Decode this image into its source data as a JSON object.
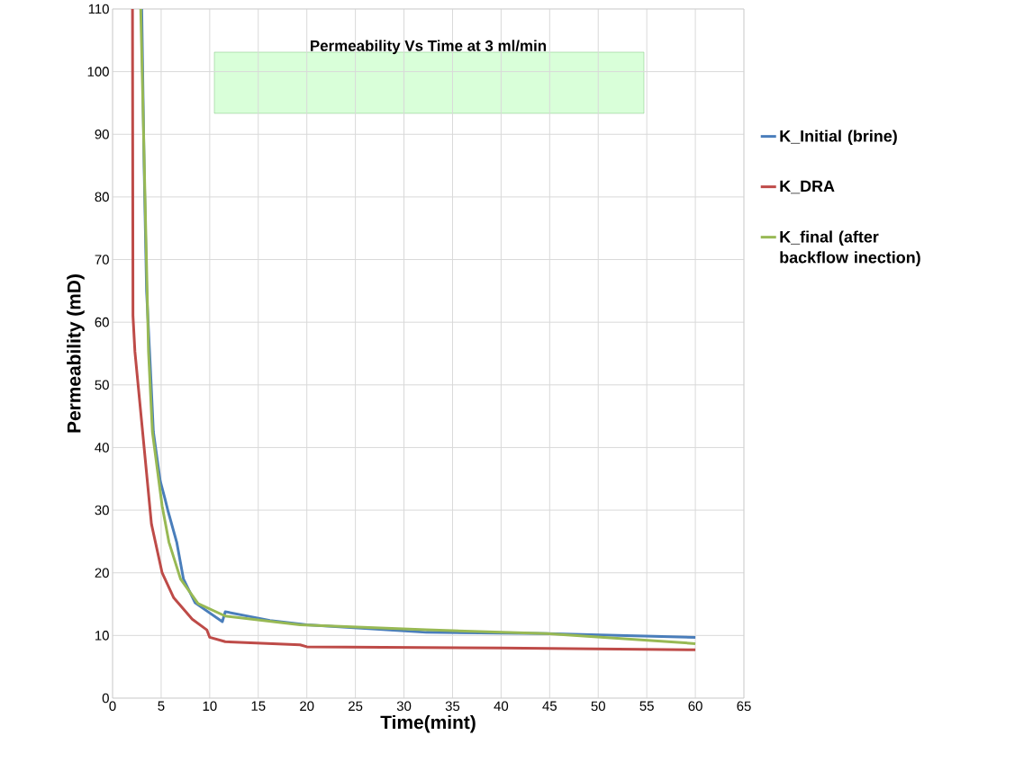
{
  "chart_data": {
    "type": "line",
    "title": "Permeability Vs Time at 3 ml/min",
    "xlabel": "Time(mint)",
    "ylabel": "Permeability (mD)",
    "xlim": [
      0,
      65
    ],
    "xticks": [
      0,
      5,
      10,
      15,
      20,
      25,
      30,
      35,
      40,
      45,
      50,
      55,
      60,
      65
    ],
    "ylim": [
      0,
      110
    ],
    "yticks": [
      0,
      10,
      20,
      30,
      40,
      50,
      60,
      70,
      80,
      90,
      100,
      110
    ],
    "grid": true,
    "legend": "right",
    "marker": "none",
    "line_style": "solid",
    "series": [
      {
        "name": "K_Initial (brine)",
        "color": "#4a7ebb",
        "x": [
          3.0,
          3.25,
          3.5,
          3.9,
          4.2,
          4.9,
          5.4,
          5.7,
          6.6,
          7.3,
          8.5,
          11.3,
          11.6,
          16.2,
          20,
          32.3,
          44.7,
          60
        ],
        "values": [
          110,
          84.7,
          65,
          52.4,
          42.5,
          34.7,
          31.8,
          29.9,
          24.9,
          19,
          15.2,
          12.2,
          13.8,
          12.4,
          11.7,
          10.5,
          10.3,
          9.7
        ]
      },
      {
        "name": "K_DRA",
        "color": "#be4b48",
        "x": [
          2.05,
          2.1,
          2.3,
          3.0,
          4.0,
          5.1,
          6.3,
          8.2,
          9.7,
          10.0,
          11.6,
          19.3,
          20,
          40,
          60
        ],
        "values": [
          110,
          61,
          55.3,
          44,
          27.8,
          20,
          16,
          12.6,
          10.9,
          9.7,
          9.0,
          8.5,
          8.2,
          8.0,
          7.7
        ]
      },
      {
        "name": "K_final (after backflow inection)",
        "color": "#98b954",
        "x": [
          2.9,
          3.7,
          4.1,
          5.1,
          5.8,
          7.0,
          8.8,
          11.6,
          19.3,
          32.3,
          44.7,
          60
        ],
        "values": [
          110,
          55.3,
          42.5,
          30.7,
          24.9,
          19,
          15.1,
          13.1,
          11.7,
          10.9,
          10.3,
          8.7
        ]
      }
    ]
  }
}
